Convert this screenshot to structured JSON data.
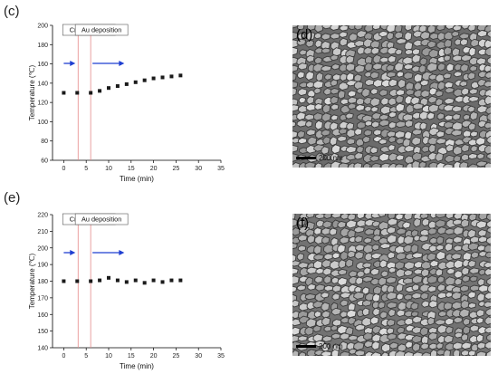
{
  "panels": {
    "c": "(c)",
    "d": "(d)",
    "e": "(e)",
    "f": "(f)"
  },
  "sem": {
    "d_scale": "200 nm",
    "f_scale": "200 nm"
  },
  "colors": {
    "axis": "#000000",
    "marker": "#1a1a1a",
    "cr_line": "#e58a8a",
    "au_line": "#e58a8a",
    "arrow": "#1f3fd1",
    "box_border": "#555555"
  },
  "chart_data": [
    {
      "type": "scatter",
      "xlabel": "Time (min)",
      "ylabel": "Temperature (℃)",
      "xlim": [
        -2.5,
        35
      ],
      "ylim": [
        60,
        200
      ],
      "xticks": [
        0,
        5,
        10,
        15,
        20,
        25,
        30,
        35
      ],
      "yticks": [
        60,
        80,
        100,
        120,
        140,
        160,
        180,
        200
      ],
      "annotations": [
        {
          "text": "Cr deposition",
          "x": 3.2
        },
        {
          "text": "Au deposition",
          "x": 6.0
        }
      ],
      "series": [
        {
          "x": [
            0,
            3,
            6,
            8,
            10,
            12,
            14,
            16,
            18,
            20,
            22,
            24,
            26
          ],
          "y": [
            130,
            130,
            130,
            132,
            135,
            137,
            139,
            141,
            143,
            145,
            146,
            147,
            148
          ]
        }
      ]
    },
    {
      "type": "scatter",
      "xlabel": "Time (min)",
      "ylabel": "Temperature (℃)",
      "xlim": [
        -2.5,
        35
      ],
      "ylim": [
        140,
        220
      ],
      "xticks": [
        0,
        5,
        10,
        15,
        20,
        25,
        30,
        35
      ],
      "yticks": [
        140,
        150,
        160,
        170,
        180,
        190,
        200,
        210,
        220
      ],
      "annotations": [
        {
          "text": "Cr deposition",
          "x": 3.2
        },
        {
          "text": "Au deposition",
          "x": 6.0
        }
      ],
      "series": [
        {
          "x": [
            0,
            3,
            6,
            8,
            10,
            12,
            14,
            16,
            18,
            20,
            22,
            24,
            26
          ],
          "y": [
            180,
            180,
            180,
            180.5,
            182,
            180.5,
            179.5,
            180.5,
            179,
            180.5,
            179.5,
            180.5,
            180.5
          ]
        }
      ]
    }
  ]
}
